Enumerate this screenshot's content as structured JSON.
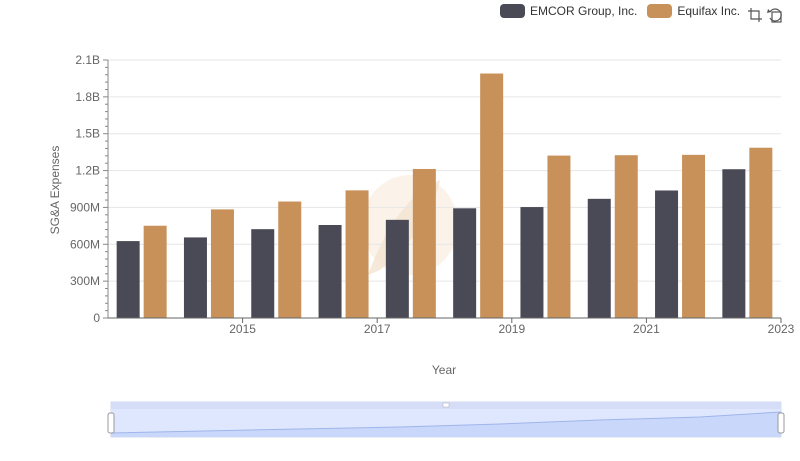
{
  "legend": {
    "items": [
      {
        "label": "EMCOR Group, Inc.",
        "color": "#4a4a56"
      },
      {
        "label": "Equifax Inc.",
        "color": "#c8915a"
      }
    ]
  },
  "toolbox": {
    "icons": [
      "zoom-icon",
      "restore-icon"
    ]
  },
  "chart_data": {
    "type": "bar",
    "x": [
      2014,
      2015,
      2016,
      2017,
      2018,
      2019,
      2020,
      2021,
      2022,
      2023
    ],
    "x_tick_labels": [
      "2015",
      "2017",
      "2019",
      "2021",
      "2023"
    ],
    "y_tick_labels": [
      "0",
      "300M",
      "600M",
      "900M",
      "1.2B",
      "1.5B",
      "1.8B",
      "2.1B"
    ],
    "ylim": [
      0,
      2100000000
    ],
    "xlabel": "Year",
    "ylabel": "SG&A Expenses",
    "series": [
      {
        "name": "EMCOR Group, Inc.",
        "color": "#4a4a56",
        "values": [
          626000000,
          656000000,
          723000000,
          757000000,
          799000000,
          893000000,
          903000000,
          970000000,
          1038000000,
          1211000000
        ]
      },
      {
        "name": "Equifax Inc.",
        "color": "#c8915a",
        "values": [
          751000000,
          884000000,
          948000000,
          1039000000,
          1213000000,
          1990000000,
          1322000000,
          1325000000,
          1328000000,
          1386000000
        ]
      }
    ],
    "grid": true,
    "legend_position": "top-right",
    "has_data_zoom": true
  }
}
